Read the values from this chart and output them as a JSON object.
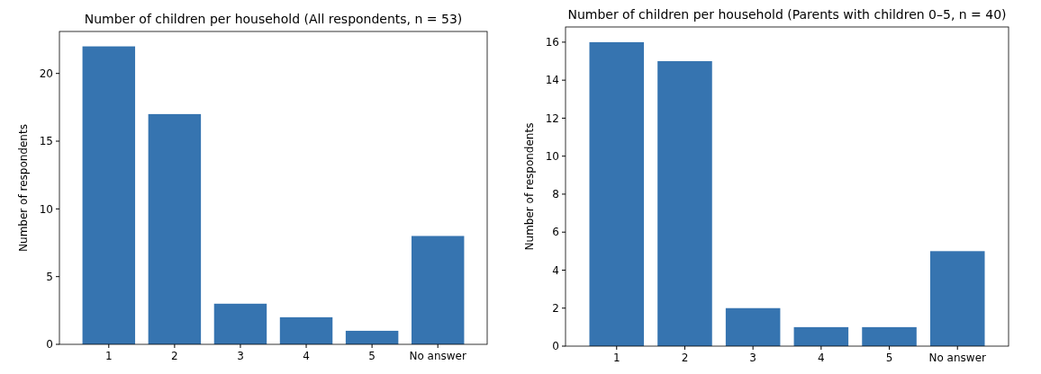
{
  "chart_data": [
    {
      "type": "bar",
      "title": "Number of children per household (All respondents, n = 53)",
      "ylabel": "Number of respondents",
      "categories": [
        "1",
        "2",
        "3",
        "4",
        "5",
        "No answer"
      ],
      "values": [
        22,
        17,
        3,
        2,
        1,
        8
      ],
      "color": "#3674b0",
      "ylim": [
        0,
        23.1
      ],
      "yticks": [
        0,
        5,
        10,
        15,
        20
      ],
      "grid": false
    },
    {
      "type": "bar",
      "title": "Number of children per household (Parents with children 0–5, n = 40)",
      "ylabel": "Number of respondents",
      "categories": [
        "1",
        "2",
        "3",
        "4",
        "5",
        "No answer"
      ],
      "values": [
        16,
        15,
        2,
        1,
        1,
        5
      ],
      "color": "#3674b0",
      "ylim": [
        0,
        16.8
      ],
      "yticks": [
        0,
        2,
        4,
        6,
        8,
        10,
        12,
        14,
        16
      ],
      "grid": false
    }
  ]
}
